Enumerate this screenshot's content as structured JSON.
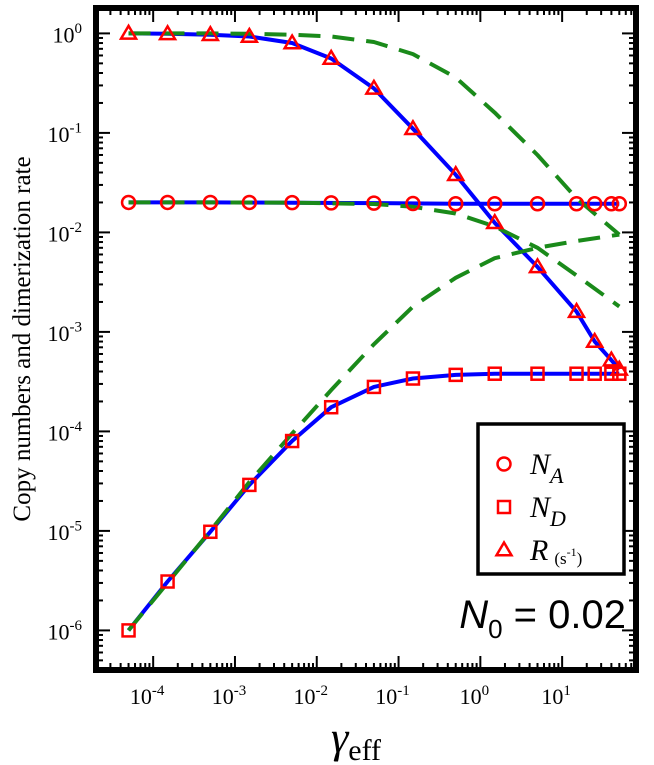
{
  "chart_data": {
    "type": "line",
    "scale": {
      "x": "log",
      "y": "log"
    },
    "xlim": [
      2e-05,
      80
    ],
    "ylim": [
      4e-07,
      1.8
    ],
    "xlabel": {
      "main": "γ",
      "sub": "eff"
    },
    "ylabel": "Copy numbers and dimerization rate",
    "x_ticks": [
      {
        "value": 0.0001,
        "base": "10",
        "exp": "-4"
      },
      {
        "value": 0.001,
        "base": "10",
        "exp": "-3"
      },
      {
        "value": 0.01,
        "base": "10",
        "exp": "-2"
      },
      {
        "value": 0.1,
        "base": "10",
        "exp": "-1"
      },
      {
        "value": 1,
        "base": "10",
        "exp": "0"
      },
      {
        "value": 10,
        "base": "10",
        "exp": "1"
      }
    ],
    "y_ticks": [
      {
        "value": 1e-06,
        "base": "10",
        "exp": "-6"
      },
      {
        "value": 1e-05,
        "base": "10",
        "exp": "-5"
      },
      {
        "value": 0.0001,
        "base": "10",
        "exp": "-4"
      },
      {
        "value": 0.001,
        "base": "10",
        "exp": "-3"
      },
      {
        "value": 0.01,
        "base": "10",
        "exp": "-2"
      },
      {
        "value": 0.1,
        "base": "10",
        "exp": "-1"
      },
      {
        "value": 1,
        "base": "10",
        "exp": "0"
      }
    ],
    "annotation": {
      "symbol": "N",
      "sub": "0",
      "text": " = 0.02"
    },
    "legend_position": "lower-right",
    "series": [
      {
        "name": "N_A",
        "label": "N",
        "label_sub": "A",
        "label_extra": "",
        "marker": "circle",
        "color": "#ff0000",
        "x": [
          5e-05,
          0.00015,
          0.0005,
          0.0015,
          0.005,
          0.015,
          0.05,
          0.15,
          0.5,
          1.5,
          5,
          15,
          25,
          40,
          50
        ],
        "y": [
          0.02,
          0.02,
          0.02,
          0.02,
          0.0199,
          0.0198,
          0.0197,
          0.0195,
          0.0194,
          0.0194,
          0.0194,
          0.0194,
          0.0194,
          0.0194,
          0.0194
        ]
      },
      {
        "name": "N_D",
        "label": "N",
        "label_sub": "D",
        "label_extra": "",
        "marker": "square",
        "color": "#ff0000",
        "x": [
          5e-05,
          0.00015,
          0.0005,
          0.0015,
          0.005,
          0.015,
          0.05,
          0.15,
          0.5,
          1.5,
          5,
          15,
          25,
          40,
          50
        ],
        "y": [
          1e-06,
          3.1e-06,
          9.8e-06,
          2.9e-05,
          8e-05,
          0.000175,
          0.00028,
          0.00034,
          0.00037,
          0.00038,
          0.00038,
          0.00038,
          0.00038,
          0.00038,
          0.00038
        ]
      },
      {
        "name": "R",
        "label": "R",
        "label_sub": "",
        "label_extra": "(s",
        "label_extra_exp": "-1",
        "label_extra_end": ")",
        "marker": "triangle",
        "color": "#ff0000",
        "x": [
          5e-05,
          0.00015,
          0.0005,
          0.0015,
          0.005,
          0.015,
          0.05,
          0.15,
          0.5,
          1.5,
          5,
          15,
          25,
          40,
          50
        ],
        "y": [
          1.0,
          0.99,
          0.97,
          0.93,
          0.8,
          0.56,
          0.28,
          0.11,
          0.038,
          0.0125,
          0.0045,
          0.0016,
          0.0008,
          0.00052,
          0.00042
        ]
      }
    ],
    "fit_lines": [
      {
        "name": "N_A-solid",
        "color": "#0000ff",
        "style": "solid",
        "x": [
          5e-05,
          0.0005,
          0.005,
          0.05,
          0.5,
          5,
          50
        ],
        "y": [
          0.02,
          0.02,
          0.0199,
          0.0197,
          0.0194,
          0.0194,
          0.0194
        ]
      },
      {
        "name": "N_D-solid",
        "color": "#0000ff",
        "style": "solid",
        "x": [
          5e-05,
          0.00015,
          0.0005,
          0.0015,
          0.005,
          0.015,
          0.05,
          0.15,
          0.5,
          1.5,
          5,
          50
        ],
        "y": [
          1e-06,
          3.1e-06,
          9.8e-06,
          2.9e-05,
          8e-05,
          0.000175,
          0.00028,
          0.00034,
          0.00037,
          0.00038,
          0.00038,
          0.00038
        ]
      },
      {
        "name": "R-solid",
        "color": "#0000ff",
        "style": "solid",
        "x": [
          5e-05,
          0.00015,
          0.0005,
          0.0015,
          0.005,
          0.015,
          0.05,
          0.15,
          0.5,
          1.5,
          5,
          15,
          25,
          40,
          50
        ],
        "y": [
          1.0,
          0.99,
          0.97,
          0.93,
          0.8,
          0.56,
          0.28,
          0.11,
          0.038,
          0.0125,
          0.0045,
          0.0016,
          0.0008,
          0.00052,
          0.00042
        ]
      },
      {
        "name": "N_A-dashed",
        "color": "#1a8a1a",
        "style": "dashed",
        "x": [
          5e-05,
          0.0005,
          0.005,
          0.05,
          0.15,
          0.5,
          1.5,
          5,
          15,
          50
        ],
        "y": [
          0.02,
          0.02,
          0.0199,
          0.0193,
          0.0181,
          0.0155,
          0.0115,
          0.007,
          0.0037,
          0.0018
        ]
      },
      {
        "name": "N_D-dashed",
        "color": "#1a8a1a",
        "style": "dashed",
        "x": [
          5e-05,
          0.00015,
          0.0005,
          0.0015,
          0.005,
          0.015,
          0.05,
          0.15,
          0.5,
          1.5,
          5,
          15,
          50
        ],
        "y": [
          1e-06,
          3e-06,
          1e-05,
          3.1e-05,
          9.5e-05,
          0.00026,
          0.00075,
          0.0018,
          0.0035,
          0.0055,
          0.007,
          0.0082,
          0.0095
        ]
      },
      {
        "name": "R-dashed",
        "color": "#1a8a1a",
        "style": "dashed",
        "x": [
          5e-05,
          0.0005,
          0.0015,
          0.005,
          0.015,
          0.05,
          0.15,
          0.5,
          1.5,
          5,
          15,
          50
        ],
        "y": [
          1.0,
          1.0,
          0.99,
          0.97,
          0.93,
          0.82,
          0.62,
          0.36,
          0.16,
          0.06,
          0.022,
          0.0095
        ]
      }
    ]
  }
}
